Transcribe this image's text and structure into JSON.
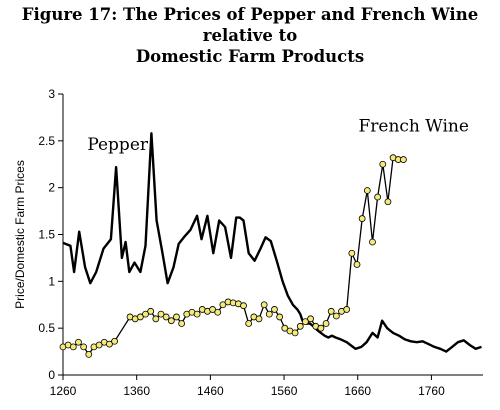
{
  "chart_data": {
    "type": "line",
    "title_line1": "Figure 17: The Prices of Pepper and French Wine relative to",
    "title_line2": "Domestic Farm Products",
    "ylabel": "Price/Domestic Farm Prices",
    "xlabel": "",
    "xlim": [
      1260,
      1830
    ],
    "ylim": [
      0,
      3
    ],
    "x_ticks": [
      1260,
      1360,
      1460,
      1560,
      1660,
      1760
    ],
    "y_ticks": [
      0,
      0.5,
      1,
      1.5,
      2,
      2.5,
      3
    ],
    "y_tick_labels": [
      "0",
      "0.5",
      "1",
      "1.5",
      "2",
      "2.5",
      "3"
    ],
    "grid": false,
    "series": [
      {
        "name": "Pepper",
        "color": "#000000",
        "marker": "none",
        "x": [
          1260,
          1270,
          1275,
          1282,
          1290,
          1297,
          1305,
          1315,
          1325,
          1332,
          1340,
          1345,
          1350,
          1357,
          1365,
          1372,
          1380,
          1387,
          1395,
          1402,
          1410,
          1417,
          1425,
          1433,
          1442,
          1448,
          1456,
          1464,
          1472,
          1480,
          1488,
          1495,
          1500,
          1505,
          1512,
          1520,
          1528,
          1535,
          1542,
          1550,
          1558,
          1565,
          1572,
          1578,
          1582,
          1585,
          1590,
          1595,
          1600,
          1605,
          1610,
          1615,
          1620,
          1625,
          1630,
          1637,
          1645,
          1650,
          1657,
          1665,
          1672,
          1680,
          1687,
          1693,
          1700,
          1708,
          1716,
          1724,
          1732,
          1740,
          1748,
          1756,
          1764,
          1772,
          1780,
          1788,
          1796,
          1804,
          1812,
          1820,
          1828
        ],
        "values": [
          1.41,
          1.38,
          1.1,
          1.53,
          1.15,
          0.98,
          1.1,
          1.35,
          1.45,
          2.22,
          1.25,
          1.42,
          1.1,
          1.2,
          1.1,
          1.38,
          2.58,
          1.65,
          1.3,
          0.98,
          1.15,
          1.4,
          1.48,
          1.55,
          1.7,
          1.45,
          1.7,
          1.3,
          1.65,
          1.58,
          1.25,
          1.68,
          1.68,
          1.65,
          1.3,
          1.22,
          1.35,
          1.47,
          1.43,
          1.22,
          1.0,
          0.85,
          0.75,
          0.7,
          0.65,
          0.58,
          0.55,
          0.55,
          0.52,
          0.48,
          0.45,
          0.42,
          0.4,
          0.42,
          0.4,
          0.38,
          0.35,
          0.32,
          0.28,
          0.3,
          0.35,
          0.45,
          0.4,
          0.58,
          0.5,
          0.45,
          0.42,
          0.38,
          0.36,
          0.35,
          0.36,
          0.33,
          0.3,
          0.28,
          0.25,
          0.3,
          0.35,
          0.37,
          0.32,
          0.28,
          0.3
        ]
      },
      {
        "name": "French Wine",
        "color": "#000000",
        "marker": "circle",
        "marker_fill": "#f5e97a",
        "x": [
          1260,
          1267,
          1274,
          1281,
          1288,
          1295,
          1302,
          1309,
          1316,
          1323,
          1330,
          1351,
          1358,
          1365,
          1372,
          1379,
          1386,
          1393,
          1400,
          1407,
          1414,
          1421,
          1428,
          1435,
          1442,
          1449,
          1456,
          1463,
          1470,
          1477,
          1484,
          1491,
          1498,
          1505,
          1512,
          1519,
          1526,
          1533,
          1540,
          1547,
          1554,
          1561,
          1568,
          1575,
          1582,
          1589,
          1596,
          1603,
          1610,
          1617,
          1624,
          1631,
          1638,
          1645,
          1652,
          1659,
          1666,
          1673,
          1680,
          1687,
          1694,
          1701,
          1708,
          1715,
          1722
        ],
        "values": [
          0.3,
          0.32,
          0.3,
          0.35,
          0.3,
          0.22,
          0.3,
          0.32,
          0.35,
          0.33,
          0.36,
          0.62,
          0.6,
          0.62,
          0.65,
          0.68,
          0.6,
          0.65,
          0.62,
          0.58,
          0.62,
          0.55,
          0.65,
          0.67,
          0.65,
          0.7,
          0.68,
          0.7,
          0.67,
          0.75,
          0.78,
          0.77,
          0.76,
          0.74,
          0.55,
          0.62,
          0.6,
          0.75,
          0.65,
          0.7,
          0.62,
          0.5,
          0.47,
          0.45,
          0.52,
          0.57,
          0.6,
          0.52,
          0.5,
          0.55,
          0.68,
          0.63,
          0.68,
          0.7,
          1.3,
          1.18,
          1.67,
          1.97,
          1.42,
          1.9,
          2.25,
          1.85,
          2.32,
          2.3,
          2.3
        ]
      }
    ]
  }
}
